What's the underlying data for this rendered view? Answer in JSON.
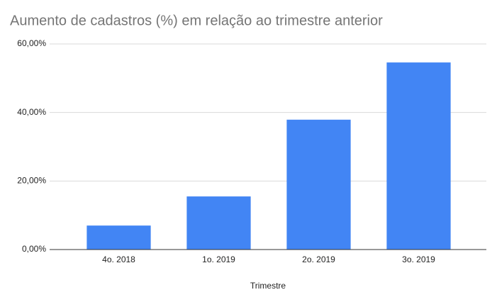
{
  "chart_data": {
    "type": "bar",
    "title": "Aumento de cadastros (%) em relação ao trimestre anterior",
    "x_label": "Trimestre",
    "categories": [
      "4o. 2018",
      "1o. 2019",
      "2o. 2019",
      "3o. 2019"
    ],
    "values": [
      7.0,
      15.5,
      37.9,
      54.6
    ],
    "color": "#4285f4",
    "ylim": [
      0,
      60
    ],
    "yticks": [
      {
        "value": 0,
        "label": "0,00%"
      },
      {
        "value": 20,
        "label": "20,00%"
      },
      {
        "value": 40,
        "label": "40,00%"
      },
      {
        "value": 60,
        "label": "60,00%"
      }
    ],
    "grid": true
  }
}
